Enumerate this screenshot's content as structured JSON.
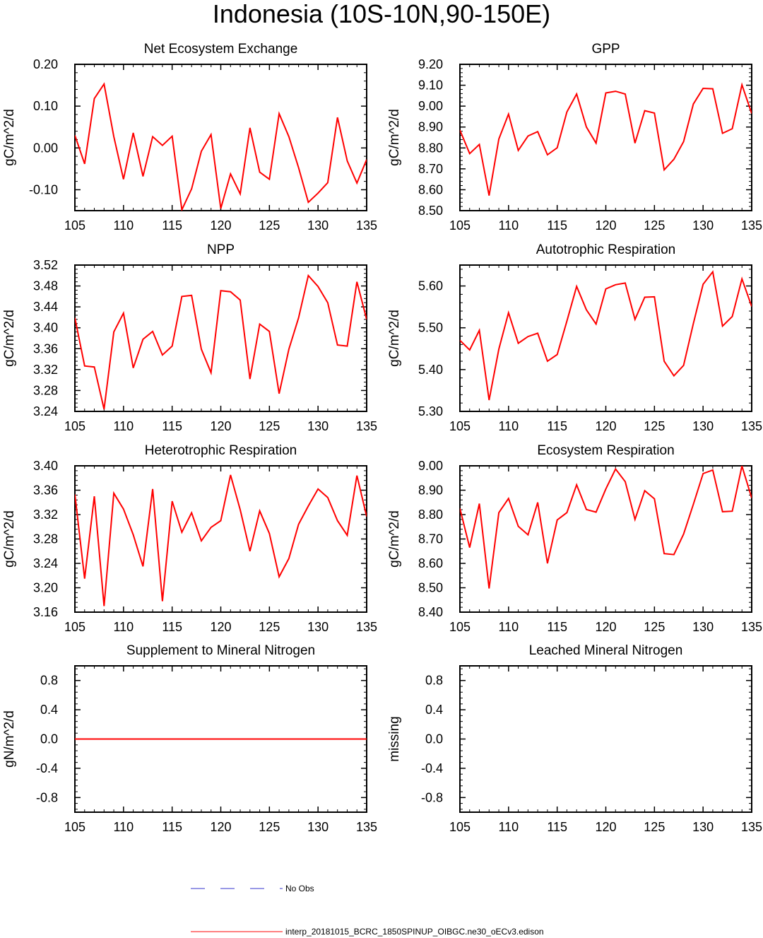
{
  "title": "Indonesia (10S-10N,90-150E)",
  "colors": {
    "model": "#ff0000",
    "obs": "#3333cc"
  },
  "legend": {
    "obs_label": "No Obs",
    "model_label": "interp_20181015_BCRC_1850SPINUP_OIBGC.ne30_oECv3.edison"
  },
  "chart_data": [
    {
      "type": "line",
      "title": "Net Ecosystem Exchange",
      "ylabel": "gC/m^2/d",
      "xlim": [
        105,
        135
      ],
      "ylim": [
        -0.15,
        0.2
      ],
      "xticks": [
        105,
        110,
        115,
        120,
        125,
        130,
        135
      ],
      "yticks": [
        "0.20",
        "0.10",
        "0.00",
        "-0.10"
      ],
      "series": [
        {
          "x": [
            105,
            106,
            107,
            108,
            109,
            110,
            111,
            112,
            113,
            114,
            115,
            116,
            117,
            118,
            119,
            120,
            121,
            122,
            123,
            124,
            125,
            126,
            127,
            128,
            129,
            130,
            131,
            132,
            133,
            134,
            135
          ],
          "values": [
            0.03,
            -0.038,
            0.118,
            0.153,
            0.027,
            -0.075,
            0.036,
            -0.068,
            0.027,
            0.006,
            0.028,
            -0.148,
            -0.098,
            -0.008,
            0.032,
            -0.145,
            -0.062,
            -0.11,
            0.048,
            -0.058,
            -0.075,
            0.082,
            0.027,
            -0.047,
            -0.13,
            -0.108,
            -0.083,
            0.073,
            -0.031,
            -0.084,
            -0.028
          ]
        }
      ]
    },
    {
      "type": "line",
      "title": "GPP",
      "ylabel": "gC/m^2/d",
      "xlim": [
        105,
        135
      ],
      "ylim": [
        8.5,
        9.2
      ],
      "xticks": [
        105,
        110,
        115,
        120,
        125,
        130,
        135
      ],
      "yticks": [
        "9.20",
        "9.10",
        "9.00",
        "8.90",
        "8.80",
        "8.70",
        "8.60",
        "8.50"
      ],
      "series": [
        {
          "x": [
            105,
            106,
            107,
            108,
            109,
            110,
            111,
            112,
            113,
            114,
            115,
            116,
            117,
            118,
            119,
            120,
            121,
            122,
            123,
            124,
            125,
            126,
            127,
            128,
            129,
            130,
            131,
            132,
            133,
            134,
            135
          ],
          "values": [
            8.885,
            8.773,
            8.817,
            8.572,
            8.843,
            8.962,
            8.788,
            8.857,
            8.878,
            8.767,
            8.801,
            8.972,
            9.058,
            8.9,
            8.823,
            9.063,
            9.071,
            9.058,
            8.823,
            8.978,
            8.967,
            8.695,
            8.746,
            8.83,
            9.01,
            9.085,
            9.083,
            8.87,
            8.892,
            9.102,
            8.965
          ]
        }
      ]
    },
    {
      "type": "line",
      "title": "NPP",
      "ylabel": "gC/m^2/d",
      "xlim": [
        105,
        135
      ],
      "ylim": [
        3.24,
        3.52
      ],
      "xticks": [
        105,
        110,
        115,
        120,
        125,
        130,
        135
      ],
      "yticks": [
        "3.52",
        "3.48",
        "3.44",
        "3.40",
        "3.36",
        "3.32",
        "3.28",
        "3.24"
      ],
      "series": [
        {
          "x": [
            105,
            106,
            107,
            108,
            109,
            110,
            111,
            112,
            113,
            114,
            115,
            116,
            117,
            118,
            119,
            120,
            121,
            122,
            123,
            124,
            125,
            126,
            127,
            128,
            129,
            130,
            131,
            132,
            133,
            134,
            135
          ],
          "values": [
            3.419,
            3.327,
            3.325,
            3.244,
            3.392,
            3.428,
            3.323,
            3.378,
            3.393,
            3.348,
            3.365,
            3.46,
            3.462,
            3.359,
            3.314,
            3.471,
            3.469,
            3.453,
            3.302,
            3.407,
            3.393,
            3.274,
            3.359,
            3.419,
            3.5,
            3.479,
            3.448,
            3.367,
            3.365,
            3.488,
            3.416
          ]
        }
      ]
    },
    {
      "type": "line",
      "title": "Autotrophic Respiration",
      "ylabel": "gC/m^2/d",
      "xlim": [
        105,
        135
      ],
      "ylim": [
        5.3,
        5.65
      ],
      "xticks": [
        105,
        110,
        115,
        120,
        125,
        130,
        135
      ],
      "yticks": [
        "5.60",
        "5.50",
        "5.40",
        "5.30"
      ],
      "series": [
        {
          "x": [
            105,
            106,
            107,
            108,
            109,
            110,
            111,
            112,
            113,
            114,
            115,
            116,
            117,
            118,
            119,
            120,
            121,
            122,
            123,
            124,
            125,
            126,
            127,
            128,
            129,
            130,
            131,
            132,
            133,
            134,
            135
          ],
          "values": [
            5.47,
            5.447,
            5.494,
            5.327,
            5.449,
            5.536,
            5.463,
            5.479,
            5.487,
            5.42,
            5.436,
            5.516,
            5.599,
            5.543,
            5.509,
            5.593,
            5.603,
            5.607,
            5.52,
            5.573,
            5.574,
            5.42,
            5.385,
            5.41,
            5.51,
            5.604,
            5.634,
            5.504,
            5.527,
            5.617,
            5.551
          ]
        }
      ]
    },
    {
      "type": "line",
      "title": "Heterotrophic Respiration",
      "ylabel": "gC/m^2/d",
      "xlim": [
        105,
        135
      ],
      "ylim": [
        3.16,
        3.4
      ],
      "xticks": [
        105,
        110,
        115,
        120,
        125,
        130,
        135
      ],
      "yticks": [
        "3.40",
        "3.36",
        "3.32",
        "3.28",
        "3.24",
        "3.20",
        "3.16"
      ],
      "series": [
        {
          "x": [
            105,
            106,
            107,
            108,
            109,
            110,
            111,
            112,
            113,
            114,
            115,
            116,
            117,
            118,
            119,
            120,
            121,
            122,
            123,
            124,
            125,
            126,
            127,
            128,
            129,
            130,
            131,
            132,
            133,
            134,
            135
          ],
          "values": [
            3.353,
            3.215,
            3.35,
            3.17,
            3.355,
            3.329,
            3.287,
            3.235,
            3.362,
            3.178,
            3.342,
            3.291,
            3.323,
            3.277,
            3.299,
            3.31,
            3.385,
            3.328,
            3.26,
            3.326,
            3.289,
            3.218,
            3.248,
            3.304,
            3.334,
            3.362,
            3.348,
            3.31,
            3.286,
            3.384,
            3.317
          ]
        }
      ]
    },
    {
      "type": "line",
      "title": "Ecosystem Respiration",
      "ylabel": "gC/m^2/d",
      "xlim": [
        105,
        135
      ],
      "ylim": [
        8.4,
        9.0
      ],
      "xticks": [
        105,
        110,
        115,
        120,
        125,
        130,
        135
      ],
      "yticks": [
        "9.00",
        "8.90",
        "8.80",
        "8.70",
        "8.60",
        "8.50",
        "8.40"
      ],
      "series": [
        {
          "x": [
            105,
            106,
            107,
            108,
            109,
            110,
            111,
            112,
            113,
            114,
            115,
            116,
            117,
            118,
            119,
            120,
            121,
            122,
            123,
            124,
            125,
            126,
            127,
            128,
            129,
            130,
            131,
            132,
            133,
            134,
            135
          ],
          "values": [
            8.825,
            8.665,
            8.845,
            8.497,
            8.808,
            8.866,
            8.752,
            8.717,
            8.85,
            8.6,
            8.778,
            8.808,
            8.922,
            8.821,
            8.81,
            8.905,
            8.987,
            8.935,
            8.78,
            8.898,
            8.865,
            8.64,
            8.636,
            8.72,
            8.842,
            8.968,
            8.983,
            8.812,
            8.814,
            8.999,
            8.868
          ]
        }
      ]
    },
    {
      "type": "line",
      "title": "Supplement to Mineral Nitrogen",
      "ylabel": "gN/m^2/d",
      "xlim": [
        105,
        135
      ],
      "ylim": [
        -1,
        1
      ],
      "xticks": [
        105,
        110,
        115,
        120,
        125,
        130,
        135
      ],
      "yticks": [
        "0.8",
        "0.4",
        "0.0",
        "-0.4",
        "-0.8"
      ],
      "series": [
        {
          "x": [
            105,
            135
          ],
          "values": [
            0,
            0
          ]
        }
      ]
    },
    {
      "type": "line",
      "title": "Leached Mineral Nitrogen",
      "ylabel": "missing",
      "xlim": [
        105,
        135
      ],
      "ylim": [
        -1,
        1
      ],
      "xticks": [
        105,
        110,
        115,
        120,
        125,
        130,
        135
      ],
      "yticks": [
        "0.8",
        "0.4",
        "0.0",
        "-0.4",
        "-0.8"
      ],
      "series": []
    }
  ]
}
